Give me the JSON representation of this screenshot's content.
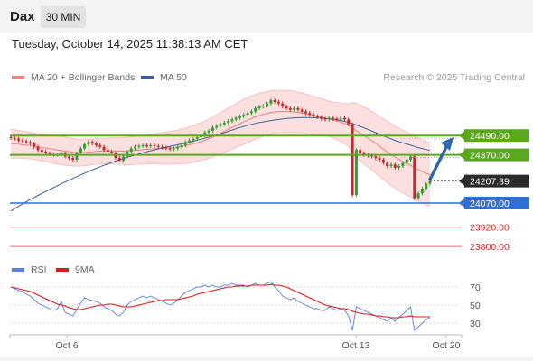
{
  "header": {
    "symbol": "Dax",
    "interval": "30 MIN",
    "timestamp": "Tuesday, October 14, 2025 11:38:13 AM CET"
  },
  "legend": {
    "bollinger": "MA 20 + Bollinger Bands",
    "ma50": "MA 50",
    "credit": "Research © 2025 Trading Central"
  },
  "rsi_legend": {
    "rsi": "RSI",
    "ma9": "9MA"
  },
  "colors": {
    "bollinger": "#f08080",
    "band_fill": "#fbd6d6",
    "ma50": "#3b5f9a",
    "resistance": "#5aa81e",
    "support": "#2f6fd8",
    "target": "#e86a6a",
    "arrow": "#2e66b4",
    "rsi": "#5b7fd8",
    "rsi_ma": "#e01818",
    "candle_up": "#2e9e2e",
    "candle_down": "#c62828"
  },
  "chart_data": [
    {
      "type": "candlestick",
      "xlabels": [
        "Oct 6",
        "Oct 13",
        "Oct 20"
      ],
      "ylim": [
        23750,
        24800
      ],
      "current_price": "24207.39",
      "levels": [
        {
          "label": "24490.00",
          "value": 24490,
          "kind": "resistance"
        },
        {
          "label": "24370.00",
          "value": 24370,
          "kind": "resistance"
        },
        {
          "label": "24070.00",
          "value": 24070,
          "kind": "support"
        },
        {
          "label": "23920.00",
          "value": 23920,
          "kind": "target"
        },
        {
          "label": "23800.00",
          "value": 23800,
          "kind": "target"
        }
      ],
      "closes": [
        24475,
        24470,
        24460,
        24455,
        24448,
        24440,
        24420,
        24400,
        24390,
        24380,
        24375,
        24370,
        24372,
        24380,
        24360,
        24350,
        24340,
        24380,
        24410,
        24435,
        24450,
        24440,
        24430,
        24420,
        24400,
        24390,
        24380,
        24350,
        24335,
        24360,
        24390,
        24410,
        24420,
        24425,
        24430,
        24425,
        24430,
        24425,
        24420,
        24415,
        24410,
        24405,
        24410,
        24420,
        24430,
        24450,
        24460,
        24470,
        24480,
        24490,
        24510,
        24520,
        24540,
        24550,
        24560,
        24570,
        24580,
        24590,
        24600,
        24610,
        24620,
        24630,
        24640,
        24660,
        24670,
        24675,
        24690,
        24710,
        24700,
        24690,
        24670,
        24660,
        24650,
        24660,
        24650,
        24640,
        24630,
        24620,
        24610,
        24605,
        24595,
        24590,
        24600,
        24595,
        24590,
        24600,
        24590,
        24560,
        24120,
        24400,
        24380,
        24370,
        24365,
        24360,
        24350,
        24340,
        24320,
        24300,
        24310,
        24290,
        24300,
        24320,
        24340,
        24360,
        24100,
        24130,
        24160,
        24190,
        24207
      ],
      "ma20": [
        24440,
        24438,
        24436,
        24433,
        24430,
        24428,
        24424,
        24420,
        24416,
        24412,
        24408,
        24404,
        24400,
        24397,
        24393,
        24390,
        24386,
        24384,
        24384,
        24385,
        24387,
        24389,
        24391,
        24393,
        24394,
        24395,
        24395,
        24394,
        24393,
        24393,
        24394,
        24396,
        24398,
        24400,
        24402,
        24404,
        24406,
        24408,
        24409,
        24410,
        24412,
        24414,
        24416,
        24418,
        24422,
        24426,
        24432,
        24438,
        24445,
        24452,
        24460,
        24470,
        24480,
        24492,
        24504,
        24516,
        24528,
        24540,
        24552,
        24564,
        24575,
        24586,
        24597,
        24606,
        24614,
        24622,
        24628,
        24633,
        24637,
        24639,
        24640,
        24640,
        24639,
        24637,
        24634,
        24630,
        24626,
        24621,
        24616,
        24611,
        24605,
        24599,
        24593,
        24587,
        24580,
        24573,
        24565,
        24555,
        24535,
        24520,
        24505,
        24490,
        24475,
        24458,
        24440,
        24422,
        24405,
        24388,
        24372,
        24356,
        24342,
        24328,
        24316,
        24305,
        24290,
        24278,
        24266,
        24255,
        24247
      ],
      "ma50": [
        24020,
        24035,
        24050,
        24064,
        24078,
        24092,
        24105,
        24118,
        24130,
        24142,
        24154,
        24166,
        24178,
        24190,
        24201,
        24212,
        24223,
        24234,
        24245,
        24256,
        24266,
        24276,
        24286,
        24296,
        24305,
        24314,
        24323,
        24331,
        24339,
        24347,
        24355,
        24362,
        24369,
        24376,
        24383,
        24389,
        24395,
        24401,
        24407,
        24412,
        24418,
        24423,
        24428,
        24433,
        24438,
        24443,
        24449,
        24455,
        24461,
        24467,
        24473,
        24480,
        24487,
        24494,
        24501,
        24508,
        24516,
        24524,
        24532,
        24540,
        24547,
        24554,
        24560,
        24566,
        24571,
        24575,
        24579,
        24583,
        24587,
        24590,
        24593,
        24596,
        24598,
        24600,
        24601,
        24602,
        24602,
        24602,
        24601,
        24600,
        24599,
        24597,
        24595,
        24592,
        24588,
        24583,
        24578,
        24572,
        24565,
        24556,
        24547,
        24538,
        24528,
        24518,
        24508,
        24498,
        24488,
        24478,
        24469,
        24460,
        24452,
        24444,
        24437,
        24430,
        24422,
        24415,
        24409,
        24403,
        24398
      ],
      "band_width": [
        90,
        88,
        86,
        85,
        84,
        83,
        82,
        82,
        83,
        84,
        85,
        86,
        87,
        88,
        88,
        87,
        86,
        85,
        84,
        83,
        82,
        81,
        80,
        80,
        80,
        80,
        81,
        82,
        83,
        84,
        85,
        86,
        87,
        88,
        89,
        90,
        92,
        94,
        96,
        98,
        100,
        102,
        104,
        106,
        108,
        110,
        112,
        114,
        116,
        118,
        120,
        122,
        124,
        126,
        128,
        130,
        132,
        134,
        136,
        138,
        140,
        140,
        140,
        139,
        138,
        137,
        136,
        135,
        134,
        133,
        132,
        131,
        130,
        128,
        126,
        124,
        122,
        120,
        118,
        116,
        114,
        112,
        110,
        112,
        116,
        120,
        126,
        132,
        160,
        170,
        175,
        178,
        180,
        182,
        184,
        186,
        188,
        190,
        192,
        193,
        194,
        195,
        196,
        196,
        198,
        198,
        198,
        198,
        198
      ]
    },
    {
      "type": "line",
      "title": "RSI",
      "ylim": [
        20,
        80
      ],
      "yticks": [
        30,
        50,
        70
      ],
      "series": [
        {
          "name": "RSI",
          "values": [
            70,
            68,
            66,
            65,
            62,
            60,
            56,
            52,
            50,
            48,
            46,
            44,
            46,
            54,
            42,
            40,
            38,
            45,
            52,
            58,
            56,
            55,
            54,
            52,
            48,
            46,
            44,
            40,
            38,
            42,
            50,
            54,
            56,
            58,
            60,
            58,
            60,
            58,
            56,
            54,
            52,
            50,
            52,
            56,
            60,
            64,
            66,
            68,
            70,
            70,
            72,
            70,
            72,
            70,
            70,
            72,
            72,
            74,
            72,
            72,
            72,
            70,
            72,
            74,
            72,
            72,
            74,
            76,
            70,
            66,
            60,
            58,
            56,
            58,
            54,
            52,
            50,
            48,
            46,
            46,
            44,
            44,
            48,
            46,
            44,
            46,
            44,
            38,
            22,
            48,
            46,
            44,
            42,
            40,
            38,
            36,
            34,
            32,
            36,
            32,
            36,
            40,
            44,
            48,
            22,
            26,
            30,
            34,
            36
          ]
        },
        {
          "name": "9MA",
          "values": [
            70,
            69,
            68,
            67,
            66,
            65,
            63,
            61,
            59,
            57,
            55,
            53,
            51,
            50,
            49,
            47,
            46,
            45,
            45,
            46,
            47,
            48,
            49,
            50,
            50,
            51,
            51,
            50,
            49,
            48,
            48,
            48,
            49,
            50,
            51,
            52,
            53,
            54,
            55,
            55,
            56,
            56,
            56,
            56,
            57,
            58,
            59,
            60,
            62,
            63,
            64,
            65,
            66,
            67,
            68,
            69,
            70,
            70,
            71,
            71,
            71,
            71,
            72,
            72,
            72,
            72,
            72,
            73,
            72,
            72,
            71,
            70,
            68,
            66,
            64,
            62,
            60,
            58,
            56,
            54,
            52,
            50,
            49,
            48,
            47,
            46,
            46,
            45,
            43,
            42,
            41,
            40,
            40,
            39,
            38,
            38,
            37,
            37,
            36,
            36,
            36,
            37,
            37,
            38,
            37,
            37,
            37,
            37,
            37
          ]
        }
      ]
    }
  ]
}
